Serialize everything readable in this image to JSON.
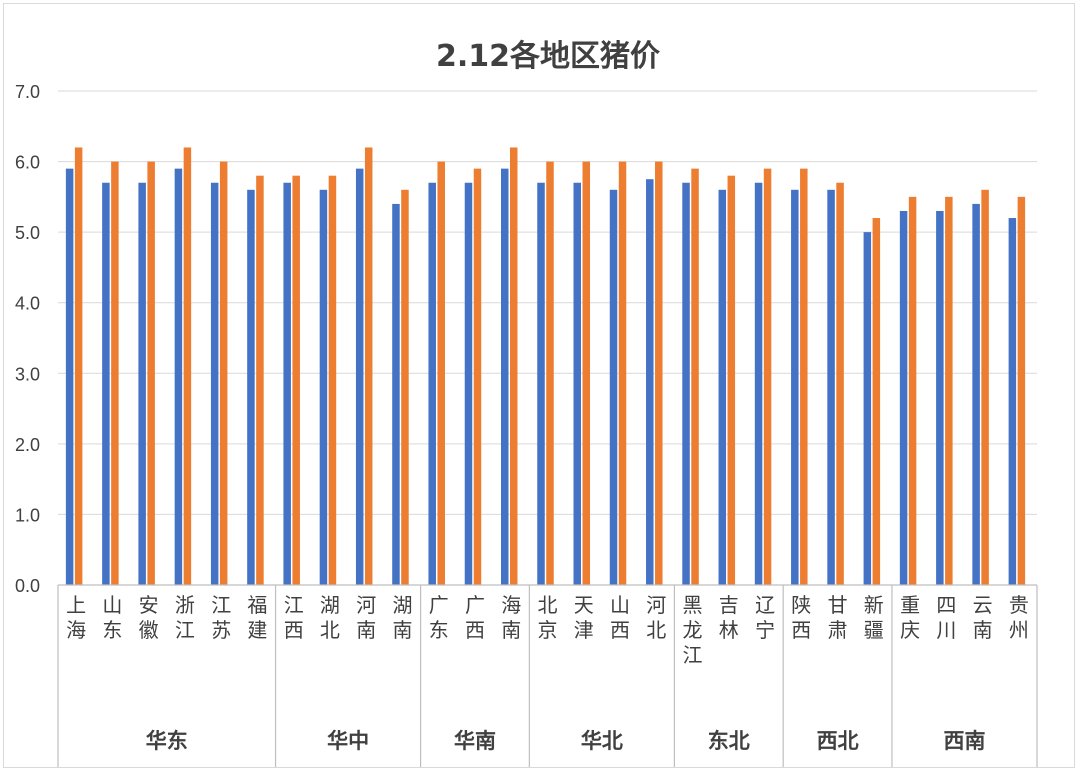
{
  "chart_data": {
    "type": "bar",
    "title": "2.12各地区猪价",
    "y_ticks": [
      "0.0",
      "1.0",
      "2.0",
      "3.0",
      "4.0",
      "5.0",
      "6.0",
      "7.0"
    ],
    "ylim": [
      0,
      7
    ],
    "grid": true,
    "categories": [
      "上海",
      "山东",
      "安徽",
      "浙江",
      "江苏",
      "福建",
      "江西",
      "湖北",
      "河南",
      "湖南",
      "广东",
      "广西",
      "海南",
      "北京",
      "天津",
      "山西",
      "河北",
      "黑龙江",
      "吉林",
      "辽宁",
      "陕西",
      "甘肃",
      "新疆",
      "重庆",
      "四川",
      "云南",
      "贵州"
    ],
    "groups": [
      {
        "name": "华东",
        "count": 6
      },
      {
        "name": "华中",
        "count": 4
      },
      {
        "name": "华南",
        "count": 3
      },
      {
        "name": "华北",
        "count": 4
      },
      {
        "name": "东北",
        "count": 3
      },
      {
        "name": "西北",
        "count": 3
      },
      {
        "name": "西南",
        "count": 4
      }
    ],
    "series": [
      {
        "color": "#4472c4",
        "values": [
          5.9,
          5.7,
          5.7,
          5.9,
          5.7,
          5.6,
          5.7,
          5.6,
          5.9,
          5.4,
          5.7,
          5.7,
          5.9,
          5.7,
          5.7,
          5.6,
          5.75,
          5.7,
          5.6,
          5.7,
          5.6,
          5.6,
          5.0,
          5.3,
          5.3,
          5.4,
          5.2
        ]
      },
      {
        "color": "#ed7d31",
        "values": [
          6.2,
          6.0,
          6.0,
          6.2,
          6.0,
          5.8,
          5.8,
          5.8,
          6.2,
          5.6,
          6.0,
          5.9,
          6.2,
          6.0,
          6.0,
          6.0,
          6.0,
          5.9,
          5.8,
          5.9,
          5.9,
          5.7,
          5.2,
          5.5,
          5.5,
          5.6,
          5.5
        ]
      }
    ],
    "gridline_color": "#d9d9d9",
    "axis_color": "#bfbfbf"
  }
}
